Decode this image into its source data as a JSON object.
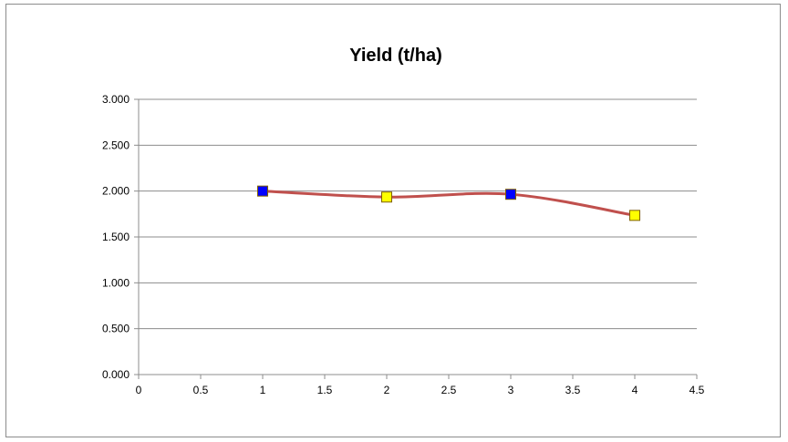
{
  "chart_data": {
    "type": "scatter",
    "title": "Yield (t/ha)",
    "xlabel": "",
    "ylabel": "",
    "xlim": [
      0,
      4.5
    ],
    "ylim": [
      0,
      3
    ],
    "x_ticks": [
      "0",
      "0.5",
      "1",
      "1.5",
      "2",
      "2.5",
      "3",
      "3.5",
      "4",
      "4.5"
    ],
    "y_ticks": [
      "0.000",
      "0.500",
      "1.000",
      "1.500",
      "2.000",
      "2.500",
      "3.000"
    ],
    "grid": "horizontal",
    "legend": "none",
    "line_smooth": true,
    "series": [
      {
        "x": [
          1,
          2,
          3,
          4
        ],
        "y": [
          2.0,
          1.935,
          1.965,
          1.735
        ],
        "line_color": "#c0504d",
        "marker": "square",
        "marker_colors": [
          "#0000ff",
          "#ffff00",
          "#0000ff",
          "#ffff00"
        ]
      }
    ]
  }
}
